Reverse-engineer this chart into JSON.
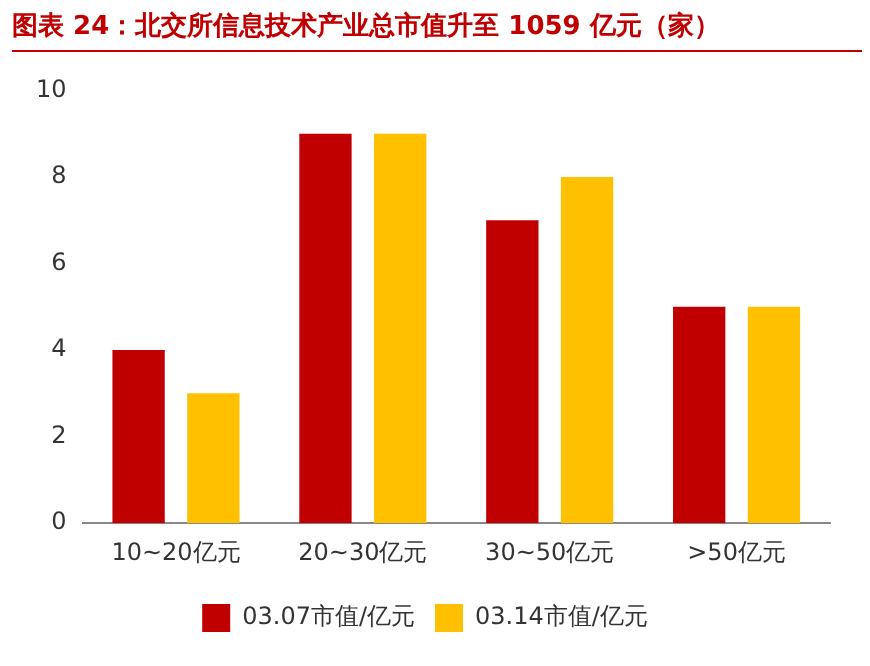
{
  "chart_data": {
    "type": "bar",
    "title": "图表 24：北交所信息技术产业总市值升至 1059 亿元（家）",
    "categories": [
      "10~20亿元",
      "20~30亿元",
      "30~50亿元",
      ">50亿元"
    ],
    "series": [
      {
        "name": "03.07市值/亿元",
        "color": "#c00000",
        "values": [
          4,
          9,
          7,
          5
        ]
      },
      {
        "name": "03.14市值/亿元",
        "color": "#ffc000",
        "values": [
          3,
          9,
          8,
          5
        ]
      }
    ],
    "ylim": [
      0,
      10
    ],
    "yticks": [
      0,
      2,
      4,
      6,
      8,
      10
    ],
    "grid": false,
    "legend": "bottom"
  }
}
